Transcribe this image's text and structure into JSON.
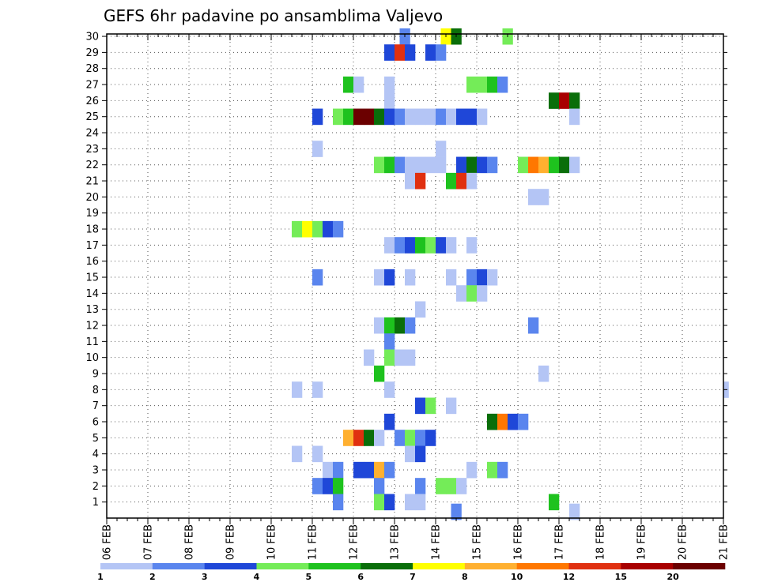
{
  "chart_data": {
    "type": "heatmap",
    "title": "GEFS 6hr padavine po ansamblima Valjevo",
    "xlabel": "",
    "ylabel": "",
    "x_ticks": [
      "06 FEB",
      "07 FEB",
      "08 FEB",
      "09 FEB",
      "10 FEB",
      "11 FEB",
      "12 FEB",
      "13 FEB",
      "14 FEB",
      "15 FEB",
      "16 FEB",
      "17 FEB",
      "18 FEB",
      "19 FEB",
      "20 FEB",
      "21 FEB"
    ],
    "y_ticks": [
      1,
      2,
      3,
      4,
      5,
      6,
      7,
      8,
      9,
      10,
      11,
      12,
      13,
      14,
      15,
      16,
      17,
      18,
      19,
      20,
      21,
      22,
      23,
      24,
      25,
      26,
      27,
      28,
      29,
      30
    ],
    "x_unit": "6-hour step from 06 FEB 00Z",
    "y_unit": "ensemble member",
    "grid": true,
    "legend": {
      "position": "bottom",
      "colors": [
        "#b4c5f5",
        "#5a85ee",
        "#1f47d8",
        "#74ec58",
        "#1ec21e",
        "#0a6e0a",
        "#ffff00",
        "#ffb030",
        "#ff7700",
        "#e03010",
        "#a80000",
        "#6b0000"
      ],
      "labels": [
        "1",
        "2",
        "3",
        "4",
        "5",
        "6",
        "7",
        "8",
        "10",
        "12",
        "15",
        "20"
      ]
    },
    "cells": [
      {
        "x": 28.5,
        "y": 30,
        "c": 1
      },
      {
        "x": 32.5,
        "y": 30,
        "c": 6
      },
      {
        "x": 33.5,
        "y": 30,
        "c": 5
      },
      {
        "x": 38.5,
        "y": 30,
        "c": 3
      },
      {
        "x": 27,
        "y": 29,
        "c": 2
      },
      {
        "x": 28,
        "y": 29,
        "c": 9
      },
      {
        "x": 29,
        "y": 29,
        "c": 2
      },
      {
        "x": 31,
        "y": 29,
        "c": 2
      },
      {
        "x": 32,
        "y": 29,
        "c": 1
      },
      {
        "x": 23,
        "y": 27,
        "c": 4
      },
      {
        "x": 24,
        "y": 27,
        "c": 0
      },
      {
        "x": 27,
        "y": 27,
        "c": 0
      },
      {
        "x": 35,
        "y": 27,
        "c": 3
      },
      {
        "x": 36,
        "y": 27,
        "c": 3
      },
      {
        "x": 37,
        "y": 27,
        "c": 4
      },
      {
        "x": 38,
        "y": 27,
        "c": 1
      },
      {
        "x": 27,
        "y": 26,
        "c": 0
      },
      {
        "x": 43,
        "y": 26,
        "c": 5
      },
      {
        "x": 44,
        "y": 26,
        "c": 10
      },
      {
        "x": 45,
        "y": 26,
        "c": 5
      },
      {
        "x": 20,
        "y": 25,
        "c": 2
      },
      {
        "x": 22,
        "y": 25,
        "c": 3
      },
      {
        "x": 23,
        "y": 25,
        "c": 4
      },
      {
        "x": 24,
        "y": 25,
        "c": 11
      },
      {
        "x": 25,
        "y": 25,
        "c": 11
      },
      {
        "x": 26,
        "y": 25,
        "c": 5
      },
      {
        "x": 27,
        "y": 25,
        "c": 2
      },
      {
        "x": 28,
        "y": 25,
        "c": 1
      },
      {
        "x": 29,
        "y": 25,
        "c": 0
      },
      {
        "x": 30,
        "y": 25,
        "c": 0
      },
      {
        "x": 31,
        "y": 25,
        "c": 0
      },
      {
        "x": 32,
        "y": 25,
        "c": 1
      },
      {
        "x": 33,
        "y": 25,
        "c": 0
      },
      {
        "x": 34,
        "y": 25,
        "c": 2
      },
      {
        "x": 35,
        "y": 25,
        "c": 2
      },
      {
        "x": 36,
        "y": 25,
        "c": 0
      },
      {
        "x": 45,
        "y": 25,
        "c": 0
      },
      {
        "x": 20,
        "y": 23,
        "c": 0
      },
      {
        "x": 32,
        "y": 23,
        "c": 0
      },
      {
        "x": 26,
        "y": 22,
        "c": 3
      },
      {
        "x": 27,
        "y": 22,
        "c": 4
      },
      {
        "x": 28,
        "y": 22,
        "c": 1
      },
      {
        "x": 29,
        "y": 22,
        "c": 0
      },
      {
        "x": 30,
        "y": 22,
        "c": 0
      },
      {
        "x": 31,
        "y": 22,
        "c": 0
      },
      {
        "x": 32,
        "y": 22,
        "c": 0
      },
      {
        "x": 34,
        "y": 22,
        "c": 2
      },
      {
        "x": 35,
        "y": 22,
        "c": 5
      },
      {
        "x": 36,
        "y": 22,
        "c": 2
      },
      {
        "x": 37,
        "y": 22,
        "c": 1
      },
      {
        "x": 40,
        "y": 22,
        "c": 3
      },
      {
        "x": 41,
        "y": 22,
        "c": 8
      },
      {
        "x": 42,
        "y": 22,
        "c": 7
      },
      {
        "x": 43,
        "y": 22,
        "c": 4
      },
      {
        "x": 44,
        "y": 22,
        "c": 5
      },
      {
        "x": 45,
        "y": 22,
        "c": 0
      },
      {
        "x": 29,
        "y": 21,
        "c": 0
      },
      {
        "x": 30,
        "y": 21,
        "c": 9
      },
      {
        "x": 33,
        "y": 21,
        "c": 4
      },
      {
        "x": 34,
        "y": 21,
        "c": 9
      },
      {
        "x": 35,
        "y": 21,
        "c": 0
      },
      {
        "x": 41,
        "y": 20,
        "c": 0
      },
      {
        "x": 42,
        "y": 20,
        "c": 0
      },
      {
        "x": 18,
        "y": 18,
        "c": 3
      },
      {
        "x": 19,
        "y": 18,
        "c": 6
      },
      {
        "x": 20,
        "y": 18,
        "c": 3
      },
      {
        "x": 21,
        "y": 18,
        "c": 2
      },
      {
        "x": 22,
        "y": 18,
        "c": 1
      },
      {
        "x": 27,
        "y": 17,
        "c": 0
      },
      {
        "x": 28,
        "y": 17,
        "c": 1
      },
      {
        "x": 29,
        "y": 17,
        "c": 2
      },
      {
        "x": 30,
        "y": 17,
        "c": 4
      },
      {
        "x": 31,
        "y": 17,
        "c": 3
      },
      {
        "x": 32,
        "y": 17,
        "c": 2
      },
      {
        "x": 33,
        "y": 17,
        "c": 0
      },
      {
        "x": 35,
        "y": 17,
        "c": 0
      },
      {
        "x": 20,
        "y": 15,
        "c": 1
      },
      {
        "x": 26,
        "y": 15,
        "c": 0
      },
      {
        "x": 27,
        "y": 15,
        "c": 2
      },
      {
        "x": 29,
        "y": 15,
        "c": 0
      },
      {
        "x": 33,
        "y": 15,
        "c": 0
      },
      {
        "x": 35,
        "y": 15,
        "c": 1
      },
      {
        "x": 36,
        "y": 15,
        "c": 2
      },
      {
        "x": 37,
        "y": 15,
        "c": 0
      },
      {
        "x": 34,
        "y": 14,
        "c": 0
      },
      {
        "x": 35,
        "y": 14,
        "c": 3
      },
      {
        "x": 36,
        "y": 14,
        "c": 0
      },
      {
        "x": 30,
        "y": 13,
        "c": 0
      },
      {
        "x": 26,
        "y": 12,
        "c": 0
      },
      {
        "x": 27,
        "y": 12,
        "c": 4
      },
      {
        "x": 28,
        "y": 12,
        "c": 5
      },
      {
        "x": 29,
        "y": 12,
        "c": 1
      },
      {
        "x": 41,
        "y": 12,
        "c": 1
      },
      {
        "x": 27,
        "y": 11,
        "c": 1
      },
      {
        "x": 25,
        "y": 10,
        "c": 0
      },
      {
        "x": 27,
        "y": 10,
        "c": 3
      },
      {
        "x": 28,
        "y": 10,
        "c": 0
      },
      {
        "x": 29,
        "y": 10,
        "c": 0
      },
      {
        "x": 26,
        "y": 9,
        "c": 4
      },
      {
        "x": 42,
        "y": 9,
        "c": 0
      },
      {
        "x": 18,
        "y": 8,
        "c": 0
      },
      {
        "x": 20,
        "y": 8,
        "c": 0
      },
      {
        "x": 27,
        "y": 8,
        "c": 0
      },
      {
        "x": 60,
        "y": 8,
        "c": 0
      },
      {
        "x": 30,
        "y": 7,
        "c": 2
      },
      {
        "x": 31,
        "y": 7,
        "c": 3
      },
      {
        "x": 33,
        "y": 7,
        "c": 0
      },
      {
        "x": 27,
        "y": 6,
        "c": 2
      },
      {
        "x": 37,
        "y": 6,
        "c": 5
      },
      {
        "x": 38,
        "y": 6,
        "c": 8
      },
      {
        "x": 39,
        "y": 6,
        "c": 2
      },
      {
        "x": 40,
        "y": 6,
        "c": 1
      },
      {
        "x": 23,
        "y": 5,
        "c": 7
      },
      {
        "x": 24,
        "y": 5,
        "c": 9
      },
      {
        "x": 25,
        "y": 5,
        "c": 5
      },
      {
        "x": 26,
        "y": 5,
        "c": 0
      },
      {
        "x": 28,
        "y": 5,
        "c": 1
      },
      {
        "x": 29,
        "y": 5,
        "c": 3
      },
      {
        "x": 30,
        "y": 5,
        "c": 1
      },
      {
        "x": 31,
        "y": 5,
        "c": 2
      },
      {
        "x": 18,
        "y": 4,
        "c": 0
      },
      {
        "x": 20,
        "y": 4,
        "c": 0
      },
      {
        "x": 29,
        "y": 4,
        "c": 0
      },
      {
        "x": 30,
        "y": 4,
        "c": 2
      },
      {
        "x": 21,
        "y": 3,
        "c": 0
      },
      {
        "x": 22,
        "y": 3,
        "c": 1
      },
      {
        "x": 24,
        "y": 3,
        "c": 2
      },
      {
        "x": 25,
        "y": 3,
        "c": 2
      },
      {
        "x": 26,
        "y": 3,
        "c": 7
      },
      {
        "x": 27,
        "y": 3,
        "c": 1
      },
      {
        "x": 35,
        "y": 3,
        "c": 0
      },
      {
        "x": 37,
        "y": 3,
        "c": 3
      },
      {
        "x": 38,
        "y": 3,
        "c": 1
      },
      {
        "x": 20,
        "y": 2,
        "c": 1
      },
      {
        "x": 21,
        "y": 2,
        "c": 2
      },
      {
        "x": 22,
        "y": 2,
        "c": 4
      },
      {
        "x": 26,
        "y": 2,
        "c": 1
      },
      {
        "x": 30,
        "y": 2,
        "c": 1
      },
      {
        "x": 32,
        "y": 2,
        "c": 3
      },
      {
        "x": 33,
        "y": 2,
        "c": 3
      },
      {
        "x": 34,
        "y": 2,
        "c": 0
      },
      {
        "x": 22,
        "y": 1,
        "c": 1
      },
      {
        "x": 26,
        "y": 1,
        "c": 3
      },
      {
        "x": 27,
        "y": 1,
        "c": 2
      },
      {
        "x": 29,
        "y": 1,
        "c": 0
      },
      {
        "x": 30,
        "y": 1,
        "c": 0
      },
      {
        "x": 43,
        "y": 1,
        "c": 4
      },
      {
        "x": 33.5,
        "y": 0.4,
        "c": 1
      },
      {
        "x": 45,
        "y": 0.4,
        "c": 0
      }
    ]
  }
}
